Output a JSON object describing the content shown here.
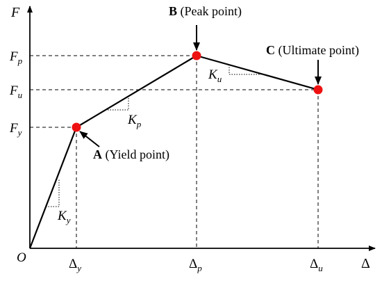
{
  "axes": {
    "y_label": "F",
    "x_label": "Δ",
    "origin_label": "O"
  },
  "y_ticks": [
    {
      "id": "fp",
      "base": "F",
      "sub": "p"
    },
    {
      "id": "fu",
      "base": "F",
      "sub": "u"
    },
    {
      "id": "fy",
      "base": "F",
      "sub": "y"
    }
  ],
  "x_ticks": [
    {
      "id": "dy",
      "base": "Δ",
      "sub": "y"
    },
    {
      "id": "dp",
      "base": "Δ",
      "sub": "p"
    },
    {
      "id": "du",
      "base": "Δ",
      "sub": "u"
    }
  ],
  "points": {
    "A": {
      "letter": "A",
      "desc": "(Yield point)",
      "color": "#ee1111"
    },
    "B": {
      "letter": "B",
      "desc": "(Peak point)",
      "color": "#ee1111"
    },
    "C": {
      "letter": "C",
      "desc": "(Ultimate point)",
      "color": "#ee1111"
    }
  },
  "stiffness": {
    "ky": {
      "base": "K",
      "sub": "y"
    },
    "kp": {
      "base": "K",
      "sub": "p"
    },
    "ku": {
      "base": "K",
      "sub": "u"
    }
  }
}
